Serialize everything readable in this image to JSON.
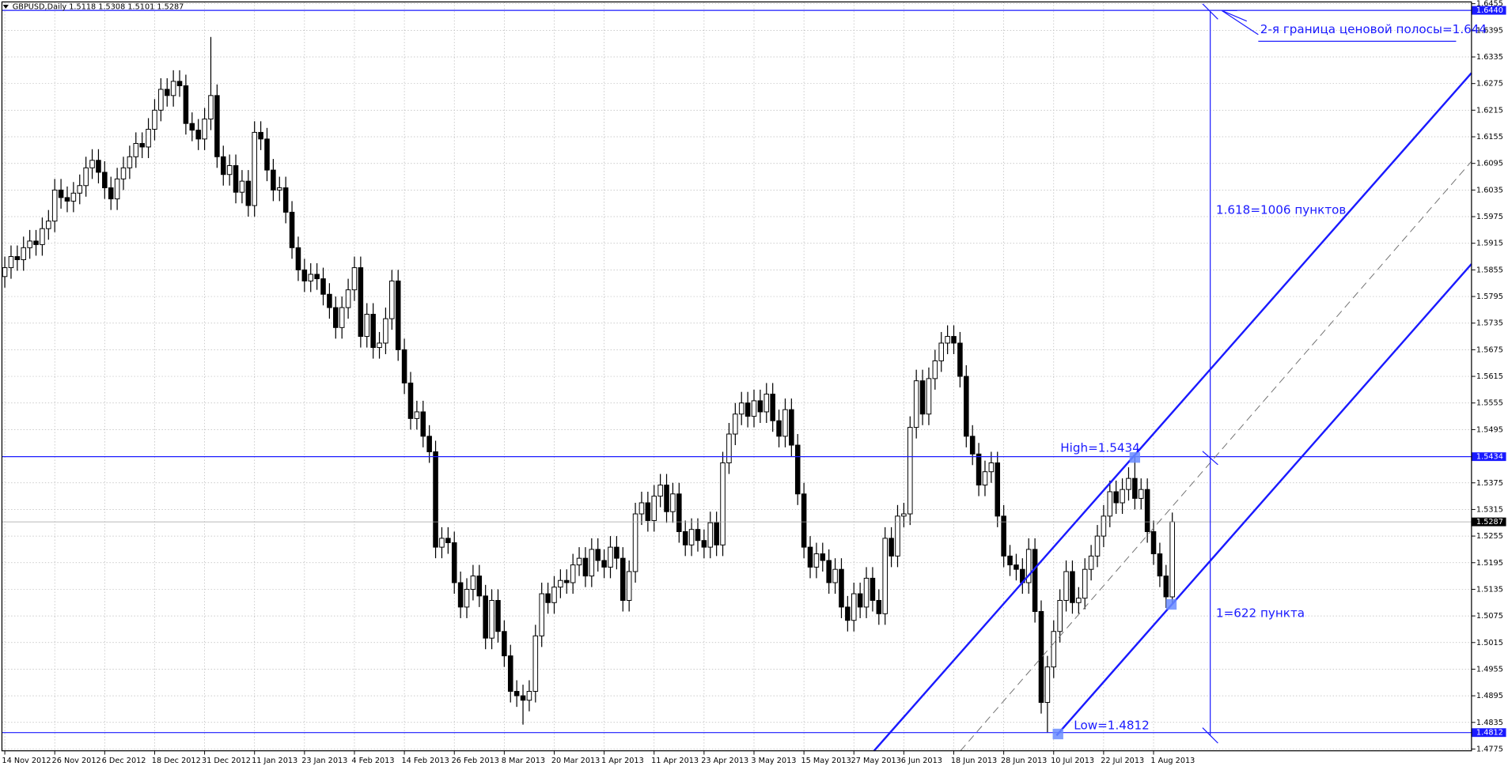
{
  "chart_data": {
    "type": "candlestick",
    "title": "GBPUSD,Daily",
    "bull_color": "#ffffff",
    "bear_color": "#000000",
    "level_color": "#1a1aff",
    "grid": true,
    "ylim": [
      1.4771,
      1.6459
    ],
    "yticks": [
      1.4775,
      1.4835,
      1.4895,
      1.4955,
      1.5015,
      1.5075,
      1.5135,
      1.5195,
      1.5255,
      1.5315,
      1.5375,
      1.5495,
      1.5555,
      1.5615,
      1.5675,
      1.5735,
      1.5795,
      1.5855,
      1.5915,
      1.5975,
      1.6035,
      1.6095,
      1.6155,
      1.6215,
      1.6275,
      1.6335,
      1.6395,
      1.6455
    ],
    "levels": [
      {
        "value": 1.644,
        "label": "1.6440"
      },
      {
        "value": 1.5434,
        "label": "1.5434"
      },
      {
        "value": 1.4812,
        "label": "1.4812"
      }
    ],
    "annotations": [
      "2-я граница ценовой полосы=1.644",
      "1.618=1006 пунктов",
      "High=1.5434",
      "1=622 пункта",
      "Low=1.4812"
    ],
    "categories": [
      "14 Nov 2012",
      null,
      null,
      null,
      null,
      null,
      null,
      null,
      "26 Nov 2012",
      null,
      null,
      null,
      null,
      null,
      null,
      null,
      "6 Dec 2012",
      null,
      null,
      null,
      null,
      null,
      null,
      null,
      "18 Dec 2012",
      null,
      null,
      null,
      null,
      null,
      null,
      null,
      "31 Dec 2012",
      null,
      null,
      null,
      null,
      null,
      null,
      null,
      "11 Jan 2013",
      null,
      null,
      null,
      null,
      null,
      null,
      null,
      "23 Jan 2013",
      null,
      null,
      null,
      null,
      null,
      null,
      null,
      "4 Feb 2013",
      null,
      null,
      null,
      null,
      null,
      null,
      null,
      "14 Feb 2013",
      null,
      null,
      null,
      null,
      null,
      null,
      null,
      "26 Feb 2013",
      null,
      null,
      null,
      null,
      null,
      null,
      null,
      "8 Mar 2013",
      null,
      null,
      null,
      null,
      null,
      null,
      null,
      "20 Mar 2013",
      null,
      null,
      null,
      null,
      null,
      null,
      null,
      "1 Apr 2013",
      null,
      null,
      null,
      null,
      null,
      null,
      null,
      "11 Apr 2013",
      null,
      null,
      null,
      null,
      null,
      null,
      null,
      "23 Apr 2013",
      null,
      null,
      null,
      null,
      null,
      null,
      null,
      "3 May 2013",
      null,
      null,
      null,
      null,
      null,
      null,
      null,
      "15 May 2013",
      null,
      null,
      null,
      null,
      null,
      null,
      null,
      "27 May 2013",
      null,
      null,
      null,
      null,
      null,
      null,
      null,
      "6 Jun 2013",
      null,
      null,
      null,
      null,
      null,
      null,
      null,
      "18 Jun 2013",
      null,
      null,
      null,
      null,
      null,
      null,
      null,
      "28 Jun 2013",
      null,
      null,
      null,
      null,
      null,
      null,
      null,
      "10 Jul 2013",
      null,
      null,
      null,
      null,
      null,
      null,
      null,
      "22 Jul 2013",
      null,
      null,
      null,
      null,
      null,
      null,
      null,
      "1 Aug 2013",
      null,
      null,
      null
    ],
    "open": [
      1.584,
      1.586,
      1.5885,
      1.5878,
      1.5905,
      1.592,
      1.5912,
      1.5948,
      1.5965,
      1.6035,
      1.6018,
      1.601,
      1.6028,
      1.6045,
      1.6085,
      1.6102,
      1.6075,
      1.604,
      1.6015,
      1.606,
      1.6085,
      1.611,
      1.614,
      1.6132,
      1.6172,
      1.6215,
      1.6262,
      1.6248,
      1.628,
      1.627,
      1.6185,
      1.617,
      1.615,
      1.6195,
      1.6248,
      1.611,
      1.607,
      1.609,
      1.603,
      1.6055,
      1.6,
      1.6165,
      1.615,
      1.608,
      1.6035,
      1.604,
      1.5985,
      1.5905,
      1.5855,
      1.583,
      1.5845,
      1.5835,
      1.58,
      1.577,
      1.5725,
      1.577,
      1.581,
      1.586,
      1.5705,
      1.5755,
      1.568,
      1.569,
      1.5745,
      1.583,
      1.5675,
      1.56,
      1.552,
      1.5535,
      1.548,
      1.5445,
      1.523,
      1.525,
      1.524,
      1.515,
      1.5095,
      1.5135,
      1.5165,
      1.512,
      1.5025,
      1.511,
      1.504,
      1.4985,
      1.4905,
      1.4895,
      1.4885,
      1.4905,
      1.503,
      1.5125,
      1.5105,
      1.514,
      1.5155,
      1.515,
      1.519,
      1.5205,
      1.5165,
      1.5225,
      1.52,
      1.5185,
      1.523,
      1.5205,
      1.511,
      1.5175,
      1.5305,
      1.533,
      1.529,
      1.5345,
      1.537,
      1.531,
      1.535,
      1.5265,
      1.5235,
      1.527,
      1.5245,
      1.523,
      1.5285,
      1.5235,
      1.542,
      1.5485,
      1.553,
      1.5555,
      1.5525,
      1.556,
      1.5535,
      1.5575,
      1.5515,
      1.548,
      1.554,
      1.546,
      1.535,
      1.523,
      1.5185,
      1.5215,
      1.52,
      1.515,
      1.518,
      1.5095,
      1.5065,
      1.5125,
      1.5095,
      1.516,
      1.511,
      1.508,
      1.525,
      1.521,
      1.53,
      1.5305,
      1.55,
      1.5605,
      1.553,
      1.561,
      1.565,
      1.569,
      1.5705,
      1.569,
      1.5615,
      1.548,
      1.544,
      1.537,
      1.54,
      1.542,
      1.53,
      1.521,
      1.519,
      1.518,
      1.515,
      1.5225,
      1.5085,
      1.488,
      1.496,
      1.504,
      1.511,
      1.5175,
      1.5105,
      1.5115,
      1.518,
      1.521,
      1.5255,
      1.53,
      1.5355,
      1.533,
      1.536,
      1.5385,
      1.534,
      1.536,
      1.5265,
      1.5215,
      1.5165,
      1.5118
    ],
    "high": [
      1.5885,
      1.591,
      1.591,
      1.593,
      1.5945,
      1.5945,
      1.5973,
      1.599,
      1.606,
      1.606,
      1.6043,
      1.6053,
      1.607,
      1.611,
      1.6127,
      1.6127,
      1.61,
      1.6065,
      1.6085,
      1.611,
      1.6135,
      1.6165,
      1.6165,
      1.6197,
      1.624,
      1.6287,
      1.6287,
      1.6305,
      1.6305,
      1.6295,
      1.621,
      1.6195,
      1.622,
      1.638,
      1.6273,
      1.6135,
      1.6115,
      1.6115,
      1.608,
      1.608,
      1.619,
      1.619,
      1.6175,
      1.6105,
      1.6065,
      1.6065,
      1.601,
      1.593,
      1.588,
      1.587,
      1.587,
      1.586,
      1.5825,
      1.5795,
      1.5795,
      1.5835,
      1.5885,
      1.5885,
      1.578,
      1.578,
      1.5715,
      1.577,
      1.5855,
      1.5855,
      1.57,
      1.5625,
      1.556,
      1.556,
      1.5505,
      1.547,
      1.5275,
      1.5275,
      1.5265,
      1.5175,
      1.516,
      1.519,
      1.519,
      1.5145,
      1.5135,
      1.5135,
      1.5065,
      1.501,
      1.493,
      1.492,
      1.493,
      1.5055,
      1.515,
      1.515,
      1.5165,
      1.518,
      1.518,
      1.5215,
      1.523,
      1.523,
      1.525,
      1.525,
      1.5225,
      1.5255,
      1.5255,
      1.523,
      1.52,
      1.533,
      1.5355,
      1.5355,
      1.537,
      1.5395,
      1.5395,
      1.5375,
      1.5375,
      1.529,
      1.5295,
      1.5295,
      1.527,
      1.531,
      1.531,
      1.5445,
      1.551,
      1.5555,
      1.558,
      1.558,
      1.5585,
      1.5585,
      1.56,
      1.56,
      1.554,
      1.5565,
      1.5565,
      1.5485,
      1.5375,
      1.5255,
      1.524,
      1.524,
      1.5225,
      1.5205,
      1.5205,
      1.512,
      1.515,
      1.515,
      1.5185,
      1.5185,
      1.5135,
      1.5275,
      1.5275,
      1.5325,
      1.533,
      1.5525,
      1.563,
      1.563,
      1.5635,
      1.5675,
      1.5715,
      1.573,
      1.573,
      1.5715,
      1.564,
      1.5505,
      1.5465,
      1.5425,
      1.5445,
      1.5445,
      1.5325,
      1.5235,
      1.5215,
      1.5205,
      1.525,
      1.525,
      1.511,
      1.4985,
      1.5065,
      1.5135,
      1.52,
      1.52,
      1.514,
      1.5205,
      1.5235,
      1.528,
      1.5325,
      1.538,
      1.538,
      1.5385,
      1.541,
      1.5434,
      1.5385,
      1.5385,
      1.529,
      1.524,
      1.519,
      1.5308
    ],
    "low": [
      1.5815,
      1.5835,
      1.5853,
      1.5853,
      1.588,
      1.5887,
      1.5887,
      1.5923,
      1.594,
      1.5993,
      1.5985,
      1.5985,
      1.6003,
      1.602,
      1.606,
      1.605,
      1.6015,
      1.599,
      1.599,
      1.6035,
      1.606,
      1.6085,
      1.6107,
      1.6107,
      1.6147,
      1.619,
      1.6223,
      1.6223,
      1.6245,
      1.616,
      1.6145,
      1.6125,
      1.6125,
      1.617,
      1.6085,
      1.6045,
      1.6045,
      1.6005,
      1.6005,
      1.5975,
      1.5975,
      1.6125,
      1.6055,
      1.601,
      1.601,
      1.596,
      1.588,
      1.583,
      1.5805,
      1.5805,
      1.581,
      1.5775,
      1.5745,
      1.57,
      1.57,
      1.5745,
      1.5785,
      1.568,
      1.568,
      1.5655,
      1.5655,
      1.5665,
      1.572,
      1.565,
      1.5575,
      1.5495,
      1.5495,
      1.5455,
      1.542,
      1.5205,
      1.5205,
      1.5215,
      1.5125,
      1.507,
      1.507,
      1.511,
      1.5095,
      1.5,
      1.5,
      1.5015,
      1.496,
      1.488,
      1.487,
      1.483,
      1.486,
      1.488,
      1.5005,
      1.508,
      1.508,
      1.5115,
      1.5125,
      1.5125,
      1.5165,
      1.514,
      1.514,
      1.5175,
      1.516,
      1.516,
      1.518,
      1.5085,
      1.5085,
      1.515,
      1.528,
      1.5265,
      1.5265,
      1.532,
      1.5285,
      1.5285,
      1.524,
      1.521,
      1.521,
      1.522,
      1.5205,
      1.5205,
      1.521,
      1.521,
      1.5395,
      1.546,
      1.5505,
      1.55,
      1.55,
      1.551,
      1.551,
      1.549,
      1.5455,
      1.5455,
      1.5435,
      1.5325,
      1.5205,
      1.516,
      1.516,
      1.5175,
      1.5125,
      1.5125,
      1.507,
      1.504,
      1.504,
      1.507,
      1.507,
      1.5085,
      1.5055,
      1.5055,
      1.5185,
      1.5185,
      1.5275,
      1.528,
      1.5475,
      1.5505,
      1.5505,
      1.5585,
      1.5625,
      1.5665,
      1.5665,
      1.559,
      1.5455,
      1.5415,
      1.5345,
      1.5345,
      1.5375,
      1.5275,
      1.5185,
      1.5165,
      1.5155,
      1.5125,
      1.5125,
      1.506,
      1.4855,
      1.4812,
      1.4935,
      1.5015,
      1.5085,
      1.508,
      1.508,
      1.509,
      1.5155,
      1.5185,
      1.523,
      1.5275,
      1.5305,
      1.5305,
      1.5335,
      1.5315,
      1.5315,
      1.524,
      1.519,
      1.514,
      1.5093,
      1.5101
    ],
    "close": [
      1.586,
      1.5885,
      1.5878,
      1.5905,
      1.592,
      1.5912,
      1.5948,
      1.5965,
      1.6035,
      1.6018,
      1.601,
      1.6028,
      1.6045,
      1.6085,
      1.6102,
      1.6075,
      1.604,
      1.6015,
      1.606,
      1.6085,
      1.611,
      1.614,
      1.6132,
      1.6172,
      1.6215,
      1.6262,
      1.6248,
      1.628,
      1.627,
      1.6185,
      1.617,
      1.615,
      1.6195,
      1.6248,
      1.611,
      1.607,
      1.609,
      1.603,
      1.6055,
      1.6,
      1.6165,
      1.615,
      1.608,
      1.6035,
      1.604,
      1.5985,
      1.5905,
      1.5855,
      1.583,
      1.5845,
      1.5835,
      1.58,
      1.577,
      1.5725,
      1.577,
      1.581,
      1.586,
      1.5705,
      1.5755,
      1.568,
      1.569,
      1.5745,
      1.583,
      1.5675,
      1.56,
      1.552,
      1.5535,
      1.548,
      1.5445,
      1.523,
      1.525,
      1.524,
      1.515,
      1.5095,
      1.5135,
      1.5165,
      1.512,
      1.5025,
      1.511,
      1.504,
      1.4985,
      1.4905,
      1.4895,
      1.4885,
      1.4905,
      1.503,
      1.5125,
      1.5105,
      1.514,
      1.5155,
      1.515,
      1.519,
      1.5205,
      1.5165,
      1.5225,
      1.52,
      1.5185,
      1.523,
      1.5205,
      1.511,
      1.5175,
      1.5305,
      1.533,
      1.529,
      1.5345,
      1.537,
      1.531,
      1.535,
      1.5265,
      1.5235,
      1.527,
      1.5245,
      1.523,
      1.5285,
      1.5235,
      1.542,
      1.5485,
      1.553,
      1.5555,
      1.5525,
      1.556,
      1.5535,
      1.5575,
      1.5515,
      1.548,
      1.554,
      1.546,
      1.535,
      1.523,
      1.5185,
      1.5215,
      1.52,
      1.515,
      1.518,
      1.5095,
      1.5065,
      1.5125,
      1.5095,
      1.516,
      1.511,
      1.508,
      1.525,
      1.521,
      1.53,
      1.5305,
      1.55,
      1.5605,
      1.553,
      1.561,
      1.565,
      1.569,
      1.5705,
      1.569,
      1.5615,
      1.548,
      1.544,
      1.537,
      1.54,
      1.542,
      1.53,
      1.521,
      1.519,
      1.518,
      1.515,
      1.5225,
      1.5085,
      1.488,
      1.496,
      1.504,
      1.511,
      1.5175,
      1.5105,
      1.5115,
      1.518,
      1.521,
      1.5255,
      1.53,
      1.5355,
      1.533,
      1.536,
      1.5385,
      1.534,
      1.536,
      1.5265,
      1.5215,
      1.5165,
      1.5118,
      1.5287
    ]
  }
}
